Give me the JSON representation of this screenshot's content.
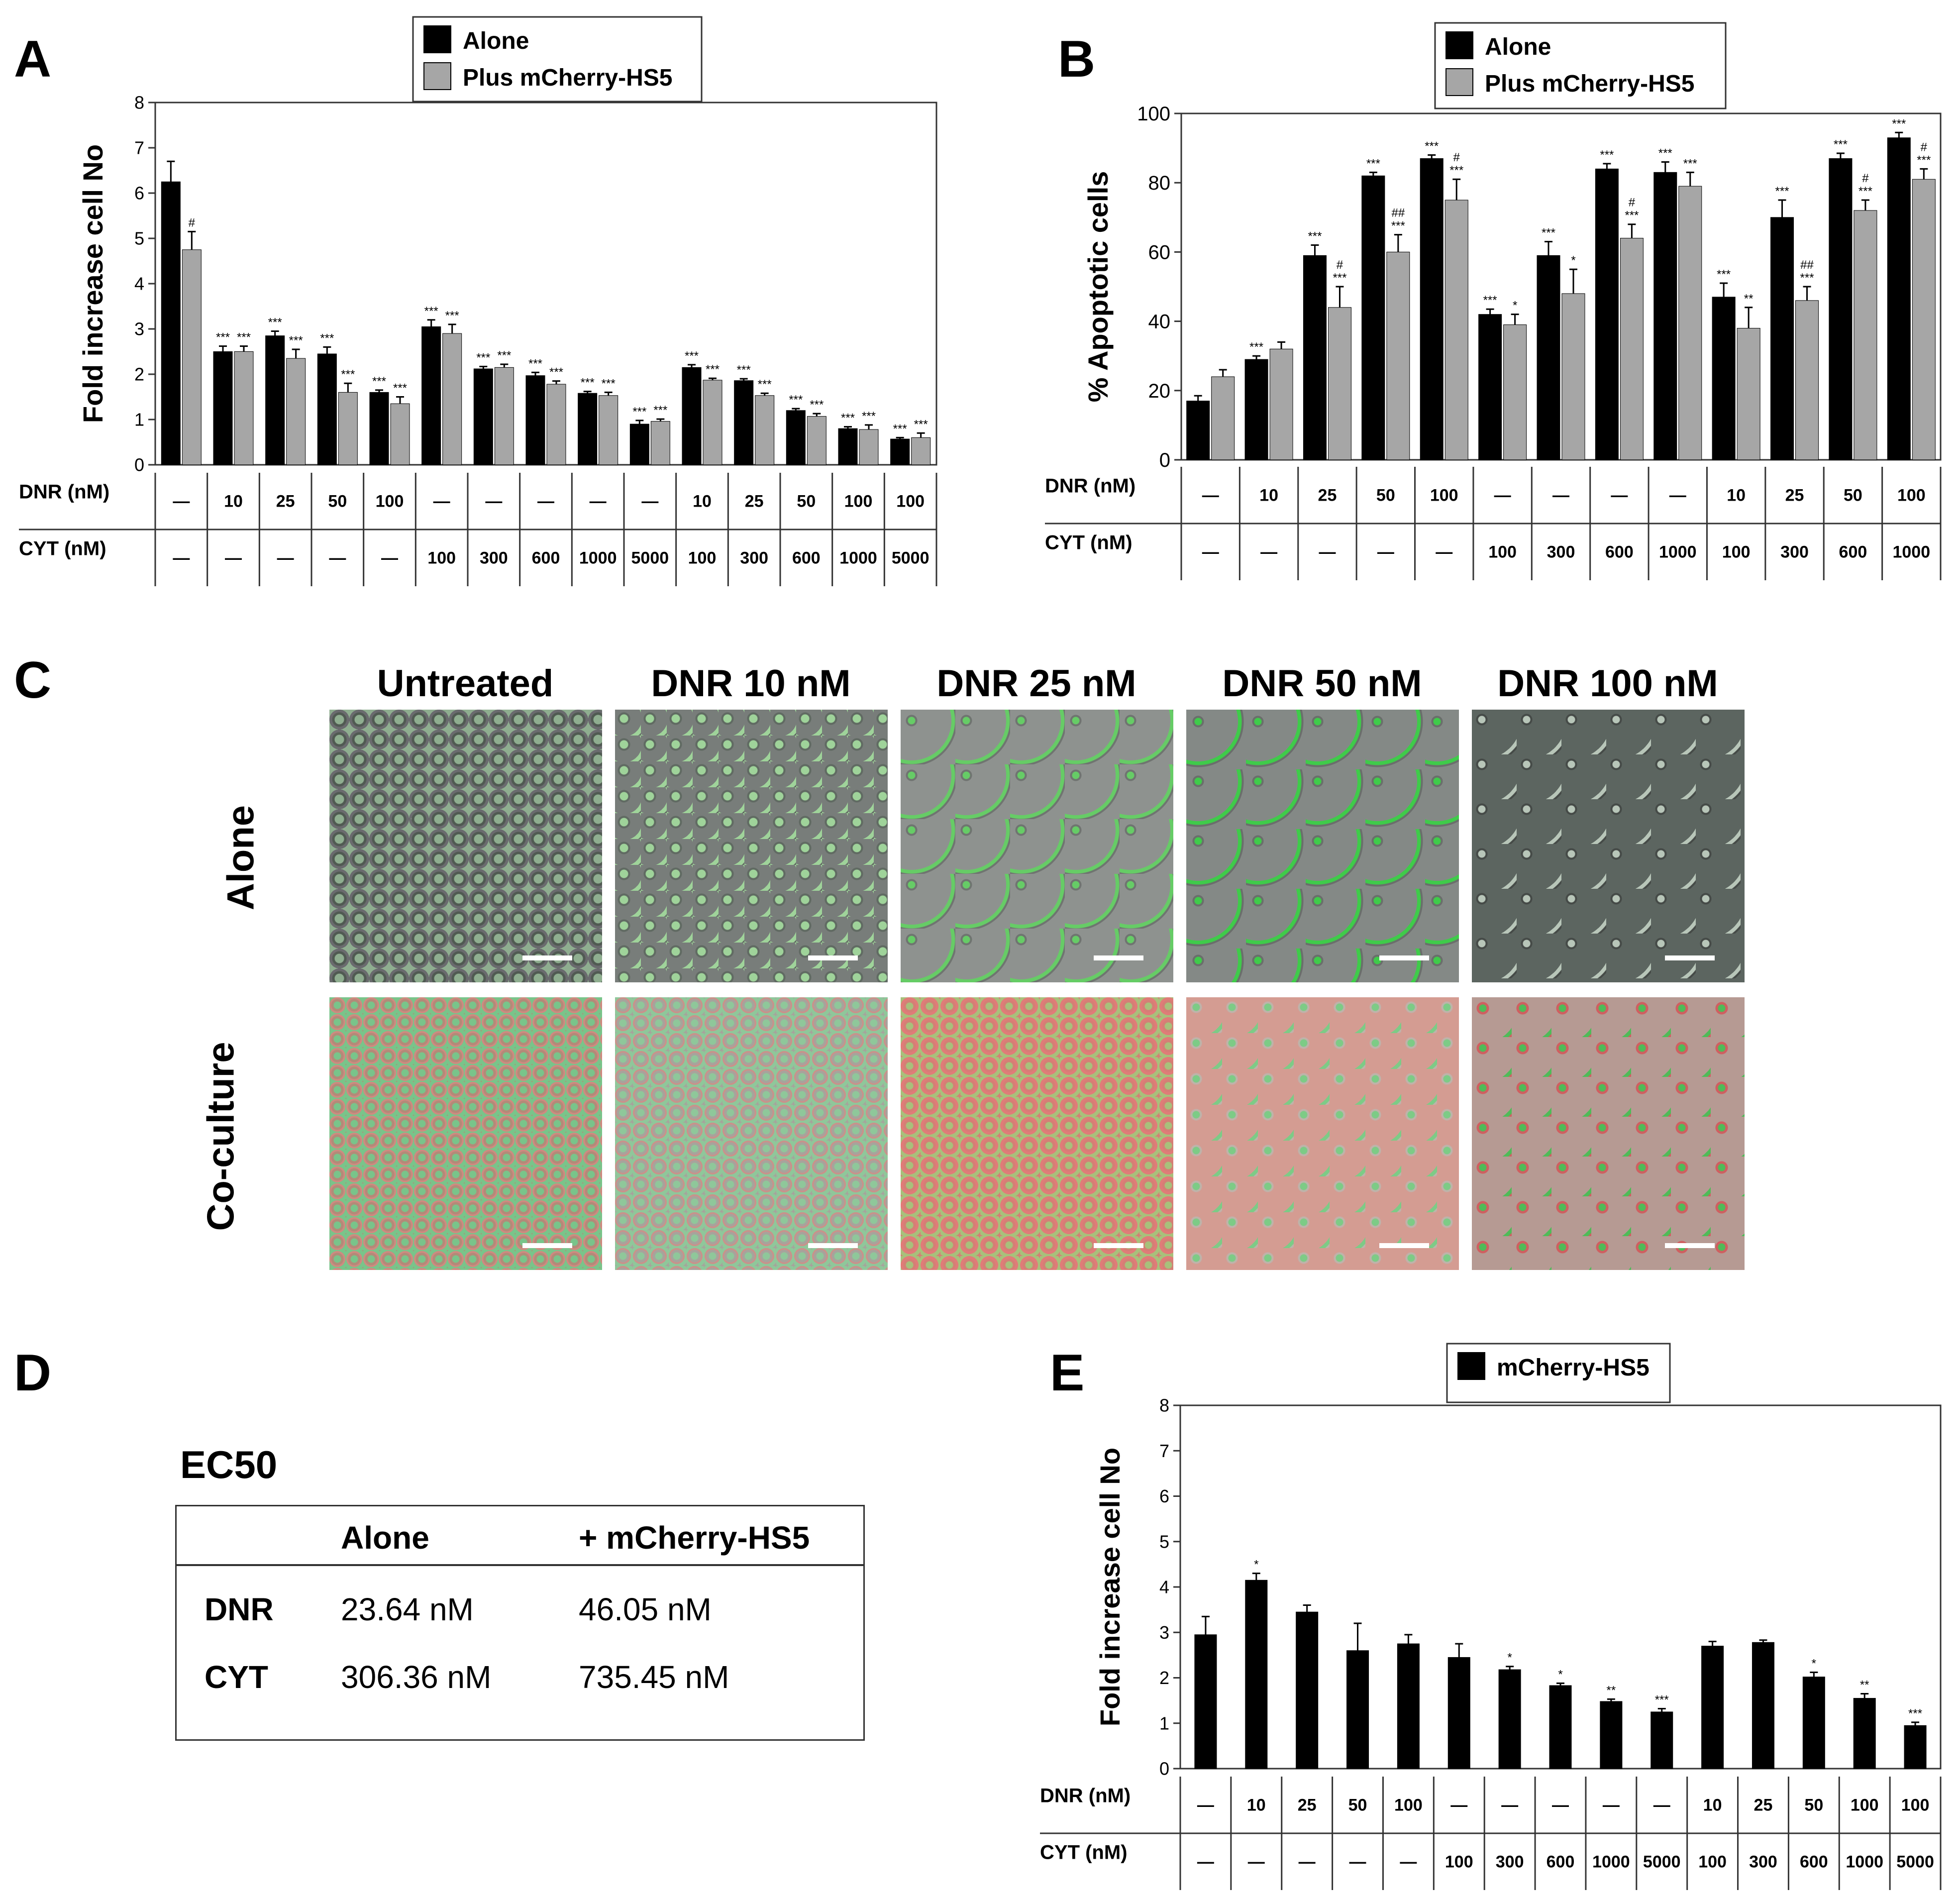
{
  "panel_labels": [
    "A",
    "B",
    "C",
    "D",
    "E"
  ],
  "legend": {
    "alone": "Alone",
    "plus": "Plus mCherry-HS5",
    "hs5": "mCherry-HS5"
  },
  "colors": {
    "alone": "#000000",
    "plus": "#a6a6a6",
    "border": "#333333"
  },
  "axis_row_labels": {
    "dnr": "DNR (nM)",
    "cyt": "CYT (nM)"
  },
  "panel_c": {
    "titles": [
      "Untreated",
      "DNR 10 nM",
      "DNR 25 nM",
      "DNR 50 nM",
      "DNR 100 nM"
    ],
    "rows": [
      "Alone",
      "Co-culture"
    ]
  },
  "panel_d": {
    "title": "EC50",
    "headers": [
      "",
      "Alone",
      "+ mCherry-HS5"
    ],
    "rows": [
      {
        "drug": "DNR",
        "alone": "23.64 nM",
        "plus": "46.05 nM"
      },
      {
        "drug": "CYT",
        "alone": "306.36 nM",
        "plus": "735.45 nM"
      }
    ]
  },
  "chart_data": [
    {
      "id": "A",
      "type": "bar",
      "ylabel": "Fold increase cell No",
      "ylim": [
        0,
        8
      ],
      "yticks": [
        0,
        1,
        2,
        3,
        4,
        5,
        6,
        7,
        8
      ],
      "dnr": [
        "—",
        "10",
        "25",
        "50",
        "100",
        "—",
        "—",
        "—",
        "—",
        "—",
        "10",
        "25",
        "50",
        "100",
        "100"
      ],
      "cyt": [
        "—",
        "—",
        "—",
        "—",
        "—",
        "100",
        "300",
        "600",
        "1000",
        "5000",
        "100",
        "300",
        "600",
        "1000",
        "5000"
      ],
      "series": [
        {
          "name": "Alone",
          "values": [
            6.25,
            2.5,
            2.85,
            2.45,
            1.6,
            3.05,
            2.12,
            1.97,
            1.58,
            0.9,
            2.15,
            1.86,
            1.2,
            0.8,
            0.57
          ],
          "errors": [
            0.45,
            0.12,
            0.1,
            0.15,
            0.05,
            0.15,
            0.05,
            0.07,
            0.04,
            0.08,
            0.06,
            0.04,
            0.04,
            0.04,
            0.03
          ],
          "labels": [
            "",
            "***",
            "***",
            "***",
            "***",
            "***",
            "***",
            "***",
            "***",
            "***",
            "***",
            "***",
            "***",
            "***",
            "***"
          ]
        },
        {
          "name": "Plus mCherry-HS5",
          "values": [
            4.75,
            2.5,
            2.35,
            1.6,
            1.35,
            2.9,
            2.15,
            1.78,
            1.53,
            0.96,
            1.87,
            1.53,
            1.07,
            0.78,
            0.6
          ],
          "errors": [
            0.4,
            0.12,
            0.2,
            0.2,
            0.15,
            0.2,
            0.07,
            0.07,
            0.07,
            0.05,
            0.04,
            0.05,
            0.06,
            0.1,
            0.1
          ],
          "labels": [
            "#",
            "***",
            "***",
            "***",
            "***",
            "***",
            "***",
            "***",
            "***",
            "***",
            "***",
            "***",
            "***",
            "***",
            "***"
          ]
        }
      ]
    },
    {
      "id": "B",
      "type": "bar",
      "ylabel": "% Apoptotic cells",
      "ylim": [
        0,
        100
      ],
      "yticks": [
        0,
        20,
        40,
        60,
        80,
        100
      ],
      "dnr": [
        "—",
        "10",
        "25",
        "50",
        "100",
        "—",
        "—",
        "—",
        "—",
        "10",
        "25",
        "50",
        "100"
      ],
      "cyt": [
        "—",
        "—",
        "—",
        "—",
        "—",
        "100",
        "300",
        "600",
        "1000",
        "100",
        "300",
        "600",
        "1000"
      ],
      "series": [
        {
          "name": "Alone",
          "values": [
            17,
            29,
            59,
            82,
            87,
            42,
            59,
            84,
            83,
            47,
            70,
            87,
            93
          ],
          "errors": [
            1.5,
            1,
            3,
            1,
            1,
            1.5,
            4,
            1.5,
            3,
            4,
            5,
            1.5,
            1.5
          ],
          "labels": [
            "",
            "***",
            "***",
            "***",
            "***",
            "***",
            "***",
            "***",
            "***",
            "***",
            "***",
            "***",
            "***"
          ]
        },
        {
          "name": "Plus mCherry-HS5",
          "values": [
            24,
            32,
            44,
            60,
            75,
            39,
            48,
            64,
            79,
            38,
            46,
            72,
            81
          ],
          "errors": [
            2,
            2,
            6,
            5,
            6,
            3,
            7,
            4,
            4,
            6,
            4,
            3,
            3
          ],
          "labels": [
            "",
            "",
            "#\n***",
            "##\n***",
            "#\n***",
            "*",
            "*",
            "#\n***",
            "***",
            "**",
            "##\n***",
            "#\n***",
            "#\n***"
          ]
        }
      ]
    },
    {
      "id": "E",
      "type": "bar",
      "ylabel": "Fold increase cell No",
      "ylim": [
        0,
        8
      ],
      "yticks": [
        0,
        1,
        2,
        3,
        4,
        5,
        6,
        7,
        8
      ],
      "dnr": [
        "—",
        "10",
        "25",
        "50",
        "100",
        "—",
        "—",
        "—",
        "—",
        "—",
        "10",
        "25",
        "50",
        "100",
        "100"
      ],
      "cyt": [
        "—",
        "—",
        "—",
        "—",
        "—",
        "100",
        "300",
        "600",
        "1000",
        "5000",
        "100",
        "300",
        "600",
        "1000",
        "5000"
      ],
      "series": [
        {
          "name": "mCherry-HS5",
          "values": [
            2.95,
            4.15,
            3.45,
            2.6,
            2.75,
            2.45,
            2.18,
            1.83,
            1.48,
            1.25,
            2.7,
            2.78,
            2.02,
            1.55,
            0.95
          ],
          "errors": [
            0.4,
            0.15,
            0.15,
            0.6,
            0.2,
            0.3,
            0.07,
            0.05,
            0.05,
            0.07,
            0.1,
            0.05,
            0.1,
            0.1,
            0.07
          ],
          "labels": [
            "",
            "*",
            "",
            "",
            "",
            "",
            "*",
            "*",
            "**",
            "***",
            "",
            "",
            "*",
            "**",
            "***"
          ]
        }
      ]
    }
  ]
}
